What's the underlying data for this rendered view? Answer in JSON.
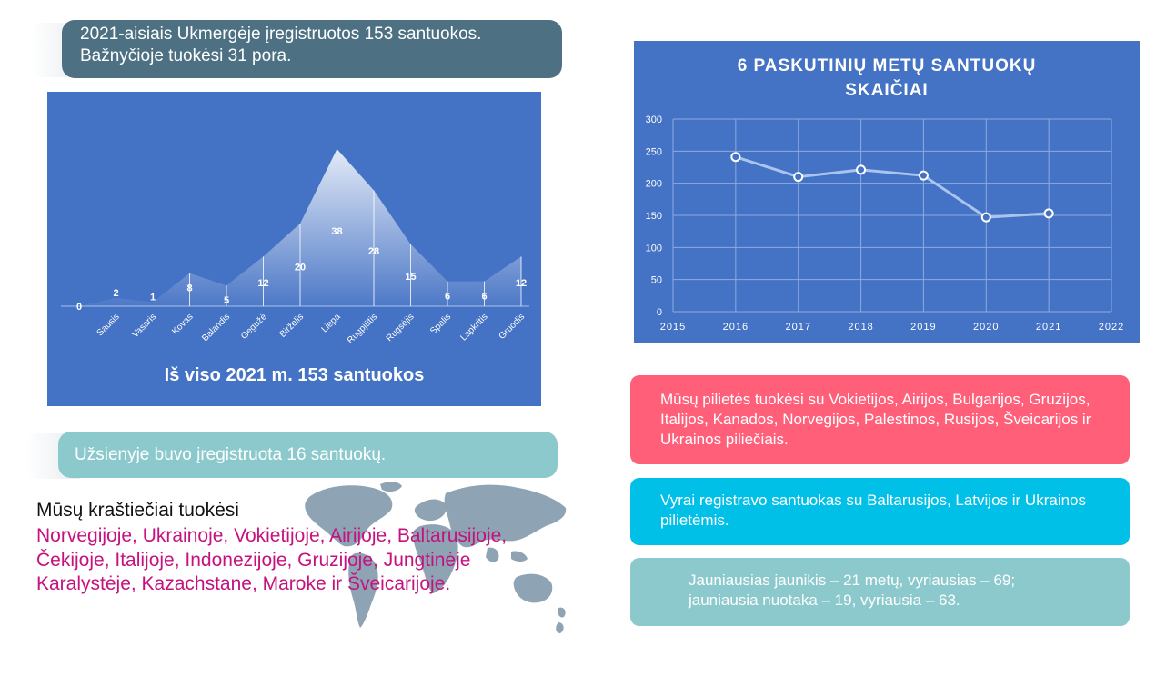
{
  "banners": {
    "top_line1": "2021-aisiais Ukmergėje įregistruotos 153 santuokos.",
    "top_line2": "Bažnyčioje tuokėsi 31 pora.",
    "abroad": "Užsienyje buvo įregistruota 16 santuokų."
  },
  "area_total": "Iš viso 2021 m. 153 santuokos",
  "line_title": "6 PASKUTINIŲ  METŲ SANTUOKŲ\nSKAIČIAI",
  "chart_data": [
    {
      "type": "area",
      "title": "Iš viso 2021 m. 153 santuokos",
      "categories": [
        "",
        "Sausis",
        "Vasaris",
        "Kovas",
        "Balandis",
        "Gegužė",
        "Birželis",
        "Liepa",
        "Rugpjūtis",
        "Rugsėjis",
        "Spalis",
        "Lapkritis",
        "Gruodis"
      ],
      "values": [
        0,
        2,
        1,
        8,
        5,
        12,
        20,
        38,
        28,
        15,
        6,
        6,
        12
      ],
      "data_labels": true
    },
    {
      "type": "line",
      "title": "6 PASKUTINIŲ  METŲ SANTUOKŲ SKAIČIAI",
      "x": [
        2016,
        2017,
        2018,
        2019,
        2020,
        2021
      ],
      "values": [
        241,
        210,
        221,
        212,
        147,
        153
      ],
      "xlim": [
        2015,
        2022
      ],
      "ylim": [
        0,
        300
      ],
      "xticks": [
        "2015",
        "2016",
        "2017",
        "2018",
        "2019",
        "2020",
        "2021",
        "2022"
      ],
      "yticks": [
        "0",
        "50",
        "100",
        "150",
        "200",
        "250",
        "300"
      ],
      "grid": true,
      "colors": {
        "line": "#a9c4ee",
        "marker_fill": "#4472c4",
        "marker_stroke": "#ffffff"
      }
    }
  ],
  "info": {
    "foreign_citizens": "Mūsų pilietės tuokėsi su Vokietijos, Airijos, Bulgarijos, Gruzijos, Italijos, Kanados, Norvegijos, Palestinos, Rusijos, Šveicarijos ir Ukrainos  piliečiais.",
    "men": "Vyrai registravo santuokas su Baltarusijos, Latvijos ir Ukrainos pilietėmis.",
    "ages_line1": "Jauniausias jaunikis – 21 metų, vyriausias – 69;",
    "ages_line2": "jauniausia nuotaka – 19, vyriausia – 63."
  },
  "countrymen": {
    "heading": "Mūsų kraštiečiai tuokėsi",
    "list": "Norvegijoje, Ukrainoje, Vokietijoje, Airijoje, Baltarusijoje, Čekijoje, Italijoje, Indonezijoje, Gruzijoje, Jungtinėje Karalystėje, Kazachstane, Maroke ir Šveicarijoje."
  },
  "colors": {
    "chart_bg": "#4472c4",
    "banner_dark": "#4d7182",
    "banner_teal": "#8cc9cd",
    "pink": "#ff5f79",
    "cyan": "#00c0e8",
    "magenta_text": "#c5127f",
    "map": "#8ea3b3"
  },
  "icons": {
    "map": "world-map-icon"
  }
}
